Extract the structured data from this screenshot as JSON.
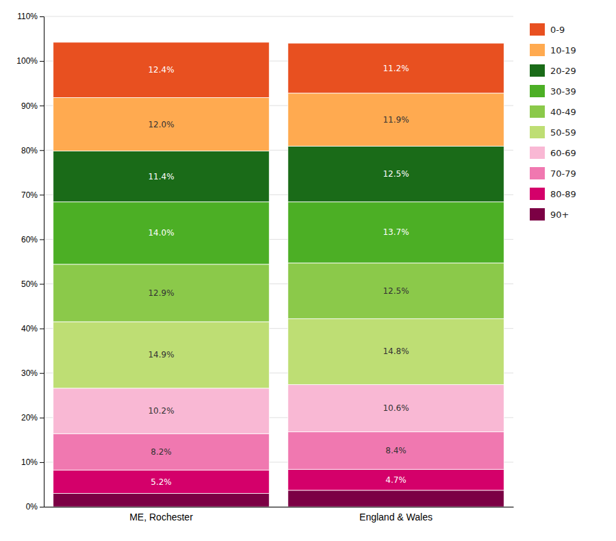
{
  "chart_data": {
    "type": "bar",
    "stacked": true,
    "data_labels": true,
    "grid": true,
    "legend": "right",
    "categories": [
      "ME, Rochester",
      "England & Wales"
    ],
    "series": [
      {
        "name": "90+",
        "color": "#7B0044",
        "values": [
          3.0,
          3.7
        ],
        "value_labels": [
          null,
          null
        ]
      },
      {
        "name": "80-89",
        "color": "#D4006A",
        "values": [
          5.2,
          4.7
        ],
        "value_labels": [
          "5.2%",
          "4.7%"
        ]
      },
      {
        "name": "70-79",
        "color": "#F078B0",
        "values": [
          8.2,
          8.4
        ],
        "value_labels": [
          "8.2%",
          "8.4%"
        ]
      },
      {
        "name": "60-69",
        "color": "#F9B8D4",
        "values": [
          10.2,
          10.6
        ],
        "value_labels": [
          "10.2%",
          "10.6%"
        ]
      },
      {
        "name": "50-59",
        "color": "#BEDE74",
        "values": [
          14.9,
          14.8
        ],
        "value_labels": [
          "14.9%",
          "14.8%"
        ]
      },
      {
        "name": "40-49",
        "color": "#8BC94A",
        "values": [
          12.9,
          12.5
        ],
        "value_labels": [
          "12.9%",
          "12.5%"
        ]
      },
      {
        "name": "30-39",
        "color": "#4CAF25",
        "values": [
          14.0,
          13.7
        ],
        "value_labels": [
          "14.0%",
          "13.7%"
        ]
      },
      {
        "name": "20-29",
        "color": "#1A6B18",
        "values": [
          11.4,
          12.5
        ],
        "value_labels": [
          "11.4%",
          "12.5%"
        ]
      },
      {
        "name": "10-19",
        "color": "#FFAA50",
        "values": [
          12.0,
          11.9
        ],
        "value_labels": [
          "12.0%",
          "11.9%"
        ]
      },
      {
        "name": "0-9",
        "color": "#E85020",
        "values": [
          12.4,
          11.2
        ],
        "value_labels": [
          "12.4%",
          "11.2%"
        ]
      }
    ],
    "ylim": [
      0,
      110
    ],
    "yticks": [
      {
        "value": 0,
        "label": "0%"
      },
      {
        "value": 10,
        "label": "10%"
      },
      {
        "value": 20,
        "label": "20%"
      },
      {
        "value": 30,
        "label": "30%"
      },
      {
        "value": 40,
        "label": "40%"
      },
      {
        "value": 50,
        "label": "50%"
      },
      {
        "value": 60,
        "label": "60%"
      },
      {
        "value": 70,
        "label": "70%"
      },
      {
        "value": 80,
        "label": "80%"
      },
      {
        "value": 90,
        "label": "90%"
      },
      {
        "value": 100,
        "label": "100%"
      },
      {
        "value": 110,
        "label": "110%"
      }
    ]
  }
}
